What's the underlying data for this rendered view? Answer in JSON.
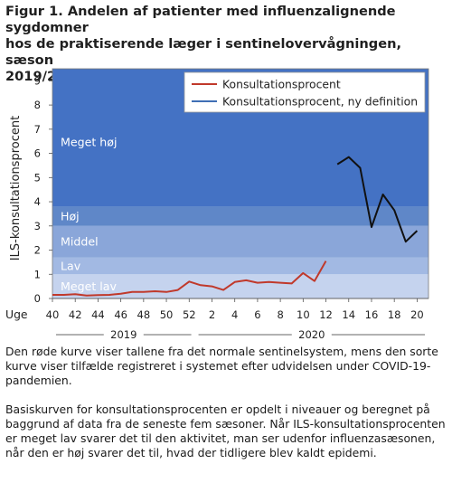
{
  "figure": {
    "title_lines": [
      "Figur 1. Andelen af patienter med influenzalignende sygdomner",
      "hos de praktiserende læger i sentinelovervågningen, sæson",
      "2019/20"
    ],
    "captions": [
      "Den røde kurve viser tallene fra det normale sentinelsystem, mens den sorte kurve viser tilfælde registreret i systemet efter udvidelsen under COVID-19-pandemien.",
      "Basiskurven for konsultationsprocenten er opdelt i niveauer og beregnet på baggrund af data fra de seneste fem sæsoner. Når ILS-konsultationsprocenten er meget lav svarer det til den aktivitet, man ser udenfor influenzasæsonen, når den er høj svarer det til, hvad der tidligere blev kaldt epidemi."
    ]
  },
  "chart_data": {
    "type": "line",
    "title": "Figur 1. Andelen af patienter med influenzalignende sygdomner hos de praktiserende læger i sentinelovervågningen, sæson 2019/20",
    "xlabel": "Uge",
    "ylabel": "ILS-konsultationsprocent",
    "ylim": [
      0,
      9.5
    ],
    "yticks": [
      0,
      1,
      2,
      3,
      4,
      5,
      6,
      7,
      8,
      9
    ],
    "x_ticks": [
      "40",
      "42",
      "44",
      "46",
      "48",
      "50",
      "52",
      "2",
      "4",
      "6",
      "8",
      "10",
      "12",
      "14",
      "16",
      "18",
      "20"
    ],
    "year_labels": [
      "2019",
      "2020"
    ],
    "weeks": [
      "40",
      "41",
      "42",
      "43",
      "44",
      "45",
      "46",
      "47",
      "48",
      "49",
      "50",
      "51",
      "52",
      "1",
      "2",
      "3",
      "4",
      "5",
      "6",
      "7",
      "8",
      "9",
      "10",
      "11",
      "12",
      "13",
      "14",
      "15",
      "16",
      "17",
      "18",
      "19",
      "20",
      "21"
    ],
    "grid": false,
    "legend_position": "top-right",
    "levels": [
      {
        "name": "Meget lav",
        "from": 0,
        "to": 1,
        "color": "#c5d3ee"
      },
      {
        "name": "Lav",
        "from": 1,
        "to": 1.7,
        "color": "#a2b9e3"
      },
      {
        "name": "Middel",
        "from": 1.7,
        "to": 3,
        "color": "#8aa6d9"
      },
      {
        "name": "Høj",
        "from": 3,
        "to": 3.8,
        "color": "#5f87c8"
      },
      {
        "name": "Meget høj",
        "from": 3.8,
        "to": 9.5,
        "color": "#4472c4"
      }
    ],
    "series": [
      {
        "name": "Konsultationsprocent",
        "color": "#c0392b",
        "x": [
          0,
          1,
          2,
          3,
          4,
          5,
          6,
          7,
          8,
          9,
          10,
          11,
          12,
          13,
          14,
          15,
          16,
          17,
          18,
          19,
          20,
          21,
          22,
          23,
          24,
          25
        ],
        "values": [
          0.15,
          0.15,
          0.18,
          0.12,
          0.14,
          0.15,
          0.2,
          0.27,
          0.27,
          0.3,
          0.27,
          0.35,
          0.7,
          0.55,
          0.5,
          0.35,
          0.68,
          0.75,
          0.65,
          0.68,
          0.65,
          0.62,
          1.05,
          0.72,
          1.55,
          null
        ]
      },
      {
        "name": "Konsultationsprocent, ny definition",
        "color": "#111111",
        "x": [
          25,
          26,
          27,
          28,
          29,
          30,
          31,
          32,
          33
        ],
        "values": [
          5.55,
          5.85,
          5.4,
          2.95,
          4.3,
          3.65,
          2.35,
          2.8,
          null
        ]
      }
    ]
  }
}
